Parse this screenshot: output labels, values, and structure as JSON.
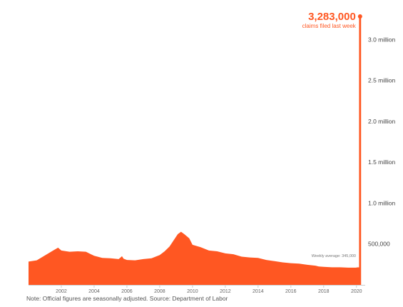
{
  "colors": {
    "accent": "#ff5722",
    "axis": "#cccccc",
    "text": "#444444"
  },
  "chart_data": {
    "type": "area",
    "title": "",
    "xlabel": "",
    "ylabel": "",
    "xlim": [
      2000,
      2020.25
    ],
    "ylim": [
      0,
      3283000
    ],
    "x_ticks": [
      2002,
      2004,
      2006,
      2008,
      2010,
      2012,
      2014,
      2016,
      2018,
      2020
    ],
    "x_tick_labels": [
      "2002",
      "2004",
      "2006",
      "2008",
      "2010",
      "2012",
      "2014",
      "2016",
      "2018",
      "2020"
    ],
    "y_ticks": [
      500000,
      1000000,
      1500000,
      2000000,
      2500000,
      3000000
    ],
    "y_tick_labels": [
      "500,000",
      "1.0 million",
      "1.5 million",
      "2.0 million",
      "2.5 million",
      "3.0 million"
    ],
    "grid": false,
    "series": [
      {
        "values_by_year": {
          "x": [
            2000,
            2000.5,
            2001,
            2001.5,
            2001.8,
            2002,
            2002.5,
            2003,
            2003.5,
            2004,
            2004.5,
            2005,
            2005.5,
            2005.7,
            2005.8,
            2006,
            2006.5,
            2007,
            2007.5,
            2008,
            2008.3,
            2008.6,
            2008.9,
            2009.1,
            2009.3,
            2009.5,
            2009.8,
            2010,
            2010.5,
            2011,
            2011.5,
            2012,
            2012.5,
            2013,
            2013.5,
            2014,
            2014.5,
            2015,
            2015.5,
            2016,
            2016.5,
            2017,
            2017.5,
            2017.7,
            2018,
            2018.5,
            2019,
            2019.5,
            2019.95,
            2020.1,
            2020.2
          ],
          "y": [
            285000,
            300000,
            360000,
            420000,
            455000,
            420000,
            405000,
            410000,
            405000,
            355000,
            330000,
            325000,
            315000,
            350000,
            320000,
            305000,
            300000,
            315000,
            325000,
            365000,
            410000,
            470000,
            560000,
            620000,
            650000,
            620000,
            570000,
            490000,
            460000,
            420000,
            410000,
            385000,
            375000,
            345000,
            335000,
            330000,
            305000,
            290000,
            275000,
            265000,
            260000,
            245000,
            235000,
            225000,
            220000,
            215000,
            215000,
            210000,
            210000,
            215000,
            211000
          ]
        }
      },
      {
        "name": "claims filed last week",
        "x": [
          2020.22
        ],
        "y": [
          3283000
        ]
      }
    ],
    "annotations": [
      {
        "text": "3,283,000",
        "at": [
          2020.22,
          3283000
        ]
      },
      {
        "text": "claims filed last week",
        "at": [
          2020.22,
          3283000
        ]
      },
      {
        "text": "Weekly average: 345,000"
      }
    ]
  },
  "footer": {
    "note": "Note: Official figures are seasonally adjusted. Source: Department of Labor"
  }
}
